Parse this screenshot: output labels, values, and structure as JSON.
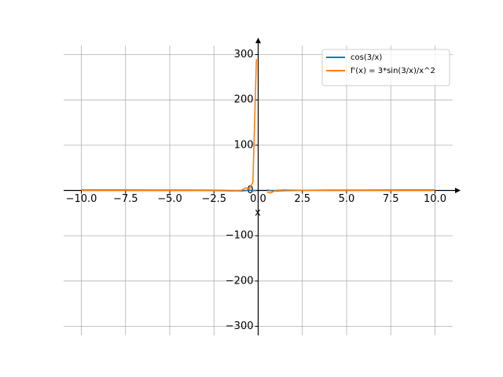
{
  "chart_data": {
    "type": "line",
    "x_label": "x",
    "x": [
      -10,
      -8,
      -6,
      -4,
      -3,
      -2,
      -1.5,
      -1,
      -0.7,
      -0.5,
      -0.3,
      -0.1,
      0,
      0.5,
      0.7,
      1,
      1.5,
      2,
      3,
      4,
      6,
      8,
      10
    ],
    "series": [
      {
        "name": "cos(3/x)",
        "color": "#1f77b4",
        "values": [
          0.955,
          0.93,
          0.878,
          0.732,
          0.54,
          0.071,
          -0.416,
          -0.99,
          -0.416,
          0.96,
          -0.839,
          0.154,
          null,
          0.96,
          -0.416,
          -0.99,
          -0.416,
          0.071,
          0.54,
          0.732,
          0.878,
          0.93,
          0.955
        ]
      },
      {
        "name": "f'(x) = 3*sin(3/x)/x^2",
        "color": "#ff7f0e",
        "values": [
          -0.009,
          -0.017,
          -0.04,
          -0.128,
          -0.28,
          -0.748,
          -1.212,
          -0.423,
          5.57,
          3.35,
          18.1,
          290,
          null,
          -3.35,
          -5.57,
          0.423,
          1.212,
          0.748,
          0.28,
          0.128,
          0.04,
          0.017,
          0.009
        ]
      }
    ],
    "xlim": [
      -11,
      11
    ],
    "ylim": [
      -320,
      320
    ],
    "xticks": [
      {
        "value": -10,
        "label": "−10.0"
      },
      {
        "value": -7.5,
        "label": "−7.5"
      },
      {
        "value": -5,
        "label": "−5.0"
      },
      {
        "value": -2.5,
        "label": "−2.5"
      },
      {
        "value": 0,
        "label": "0.0"
      },
      {
        "value": 2.5,
        "label": "2.5"
      },
      {
        "value": 5,
        "label": "5.0"
      },
      {
        "value": 7.5,
        "label": "7.5"
      },
      {
        "value": 10,
        "label": "10.0"
      }
    ],
    "yticks": [
      {
        "value": -300,
        "label": "−300"
      },
      {
        "value": -200,
        "label": "−200"
      },
      {
        "value": -100,
        "label": "−100"
      },
      0,
      100,
      200,
      300
    ],
    "grid": true,
    "legend": "upper right"
  }
}
